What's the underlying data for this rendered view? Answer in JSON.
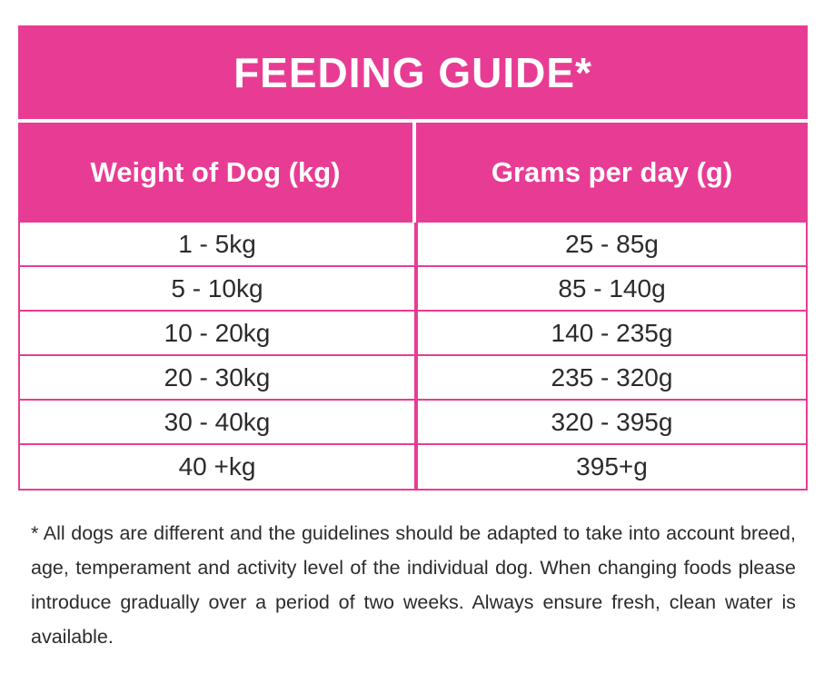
{
  "title": "FEEDING GUIDE*",
  "headers": [
    "Weight of Dog (kg)",
    "Grams per day (g)"
  ],
  "rows": [
    [
      "1 - 5kg",
      "25 - 85g"
    ],
    [
      "5 - 10kg",
      "85 - 140g"
    ],
    [
      "10 - 20kg",
      "140 - 235g"
    ],
    [
      "20 - 30kg",
      "235 - 320g"
    ],
    [
      "30 - 40kg",
      "320 - 395g"
    ],
    [
      "40 +kg",
      "395+g"
    ]
  ],
  "footnote": "* All dogs are different and the guidelines should be adapted to take into account breed, age, temperament and activity level of the individual dog. When changing foods please introduce gradually over a period of two weeks. Always ensure fresh, clean water is available.",
  "colors": {
    "accent": "#e83c94"
  }
}
